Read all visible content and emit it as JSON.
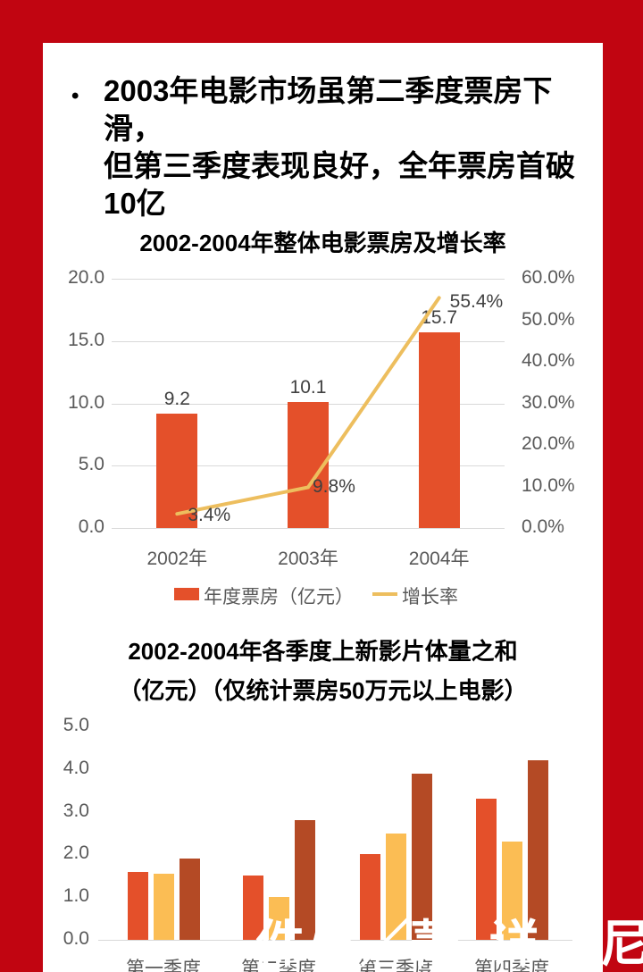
{
  "heading": {
    "bullet": "•",
    "lines": [
      "2003年电影市场虽第二季度票房下滑，",
      "但第三季度表现良好，全年票房首破",
      "10亿"
    ]
  },
  "colors": {
    "frame_red": "#C10511",
    "bar_orange": "#E4502A",
    "bar_yellow": "#FBBD54",
    "bar_brown": "#B44A25",
    "line_gold": "#EDBE5E",
    "gridline": "#D9D9D9",
    "axis_text": "#595959",
    "data_label": "#404040"
  },
  "chart_data": [
    {
      "type": "combo-bar-line",
      "title": "2002-2004年整体电影票房及增长率",
      "categories": [
        "2002年",
        "2003年",
        "2004年"
      ],
      "series": [
        {
          "name": "年度票房（亿元）",
          "render": "bar",
          "color": "#E4502A",
          "axis": "left",
          "values": [
            9.2,
            10.1,
            15.7
          ],
          "labels": [
            "9.2",
            "10.1",
            "15.7"
          ]
        },
        {
          "name": "增长率",
          "render": "line",
          "color": "#EDBE5E",
          "axis": "right",
          "values": [
            3.4,
            9.8,
            55.4
          ],
          "labels": [
            "3.4%",
            "9.8%",
            "55.4%"
          ]
        }
      ],
      "left_axis": {
        "ticks": [
          "20.0",
          "15.0",
          "10.0",
          "5.0",
          "0.0"
        ],
        "min": 0,
        "max": 20
      },
      "right_axis": {
        "ticks": [
          "60.0%",
          "50.0%",
          "40.0%",
          "30.0%",
          "20.0%",
          "10.0%",
          "0.0%"
        ],
        "min": 0,
        "max": 60
      },
      "legend_position": "bottom",
      "grid": true
    },
    {
      "type": "bar",
      "title_lines": [
        "2002-2004年各季度上新影片体量之和",
        "（亿元）（仅统计票房50万元以上电影）"
      ],
      "categories": [
        "第一季度",
        "第二季度",
        "第三季度",
        "第四季度"
      ],
      "series": [
        {
          "color": "#E4502A",
          "values": [
            1.6,
            1.5,
            2.0,
            3.3
          ]
        },
        {
          "color": "#FBBD54",
          "values": [
            1.55,
            1.0,
            2.5,
            2.3
          ]
        },
        {
          "color": "#B44A25",
          "values": [
            1.9,
            2.8,
            3.9,
            4.2
          ]
        }
      ],
      "y_axis": {
        "ticks": [
          "5.0",
          "4.0",
          "3.0",
          "2.0",
          "1.0",
          "0.0"
        ],
        "min": 0,
        "max": 5
      },
      "grid": false
    }
  ],
  "watermark": {
    "fragments": [
      {
        "text": "件与"
      },
      {
        "text": "／菁"
      },
      {
        "text": "详"
      },
      {
        "text": "尼"
      }
    ]
  }
}
